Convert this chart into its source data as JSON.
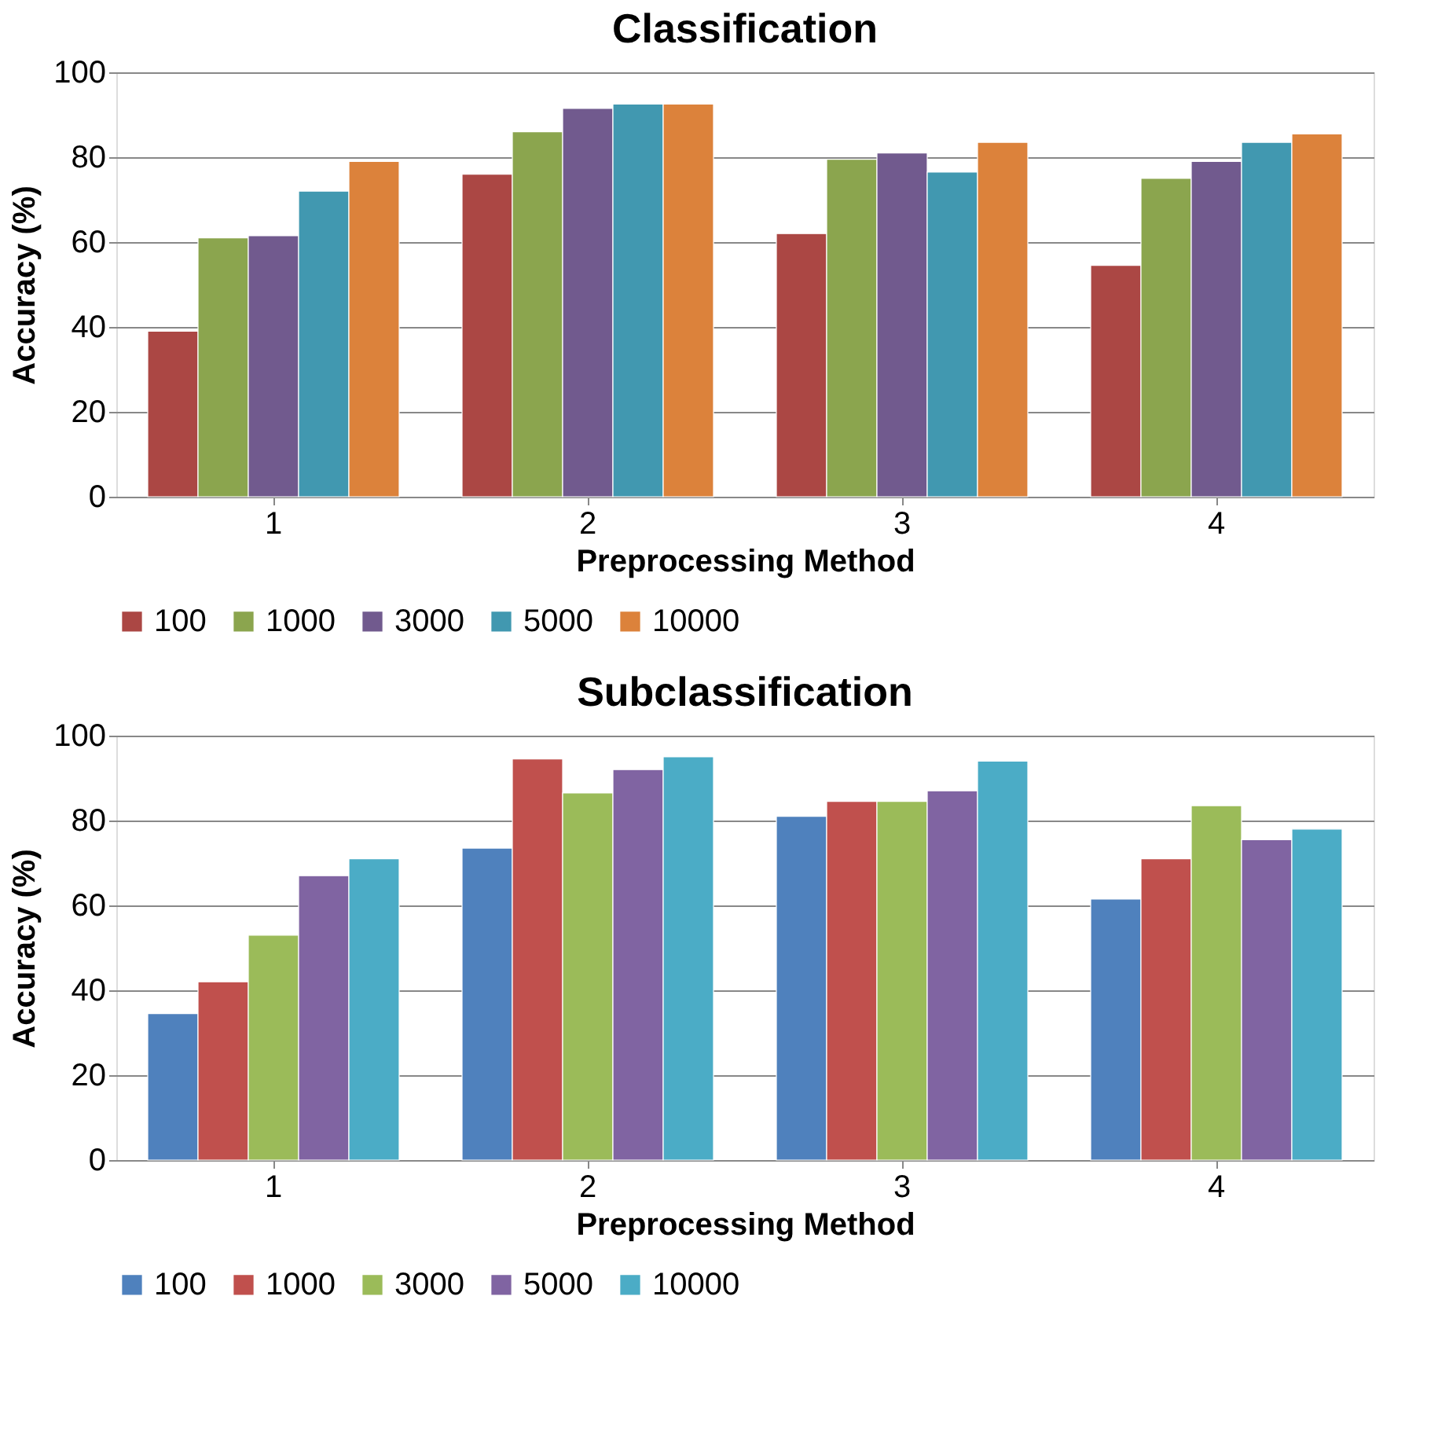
{
  "chart_data": [
    {
      "type": "bar",
      "title": "Classification",
      "xlabel": "Preprocessing Method",
      "ylabel": "Accuracy (%)",
      "categories": [
        "1",
        "2",
        "3",
        "4"
      ],
      "ylim": [
        0,
        100
      ],
      "yticks": [
        0,
        20,
        40,
        60,
        80,
        100
      ],
      "grid": "y",
      "legend": "bottom",
      "series": [
        {
          "name": "100",
          "color": "#ab4744",
          "values": [
            39,
            76,
            62,
            54.5
          ]
        },
        {
          "name": "1000",
          "color": "#8ba54e",
          "values": [
            61,
            86,
            79.5,
            75
          ]
        },
        {
          "name": "3000",
          "color": "#715a8e",
          "values": [
            61.5,
            91.5,
            81,
            79
          ]
        },
        {
          "name": "5000",
          "color": "#4198b0",
          "values": [
            72,
            92.5,
            76.5,
            83.5
          ]
        },
        {
          "name": "10000",
          "color": "#dc823b",
          "values": [
            79,
            92.5,
            83.5,
            85.5
          ]
        }
      ]
    },
    {
      "type": "bar",
      "title": "Subclassification",
      "xlabel": "Preprocessing Method",
      "ylabel": "Accuracy (%)",
      "categories": [
        "1",
        "2",
        "3",
        "4"
      ],
      "ylim": [
        0,
        100
      ],
      "yticks": [
        0,
        20,
        40,
        60,
        80,
        100
      ],
      "grid": "y",
      "legend": "bottom",
      "series": [
        {
          "name": "100",
          "color": "#4f81bd",
          "values": [
            34.5,
            73.5,
            81,
            61.5
          ]
        },
        {
          "name": "1000",
          "color": "#c0504d",
          "values": [
            42,
            94.5,
            84.5,
            71
          ]
        },
        {
          "name": "3000",
          "color": "#9bbb59",
          "values": [
            53,
            86.5,
            84.5,
            83.5
          ]
        },
        {
          "name": "5000",
          "color": "#8064a2",
          "values": [
            67,
            92,
            87,
            75.5
          ]
        },
        {
          "name": "10000",
          "color": "#4bacc6",
          "values": [
            71,
            95,
            94,
            78
          ]
        }
      ]
    }
  ]
}
